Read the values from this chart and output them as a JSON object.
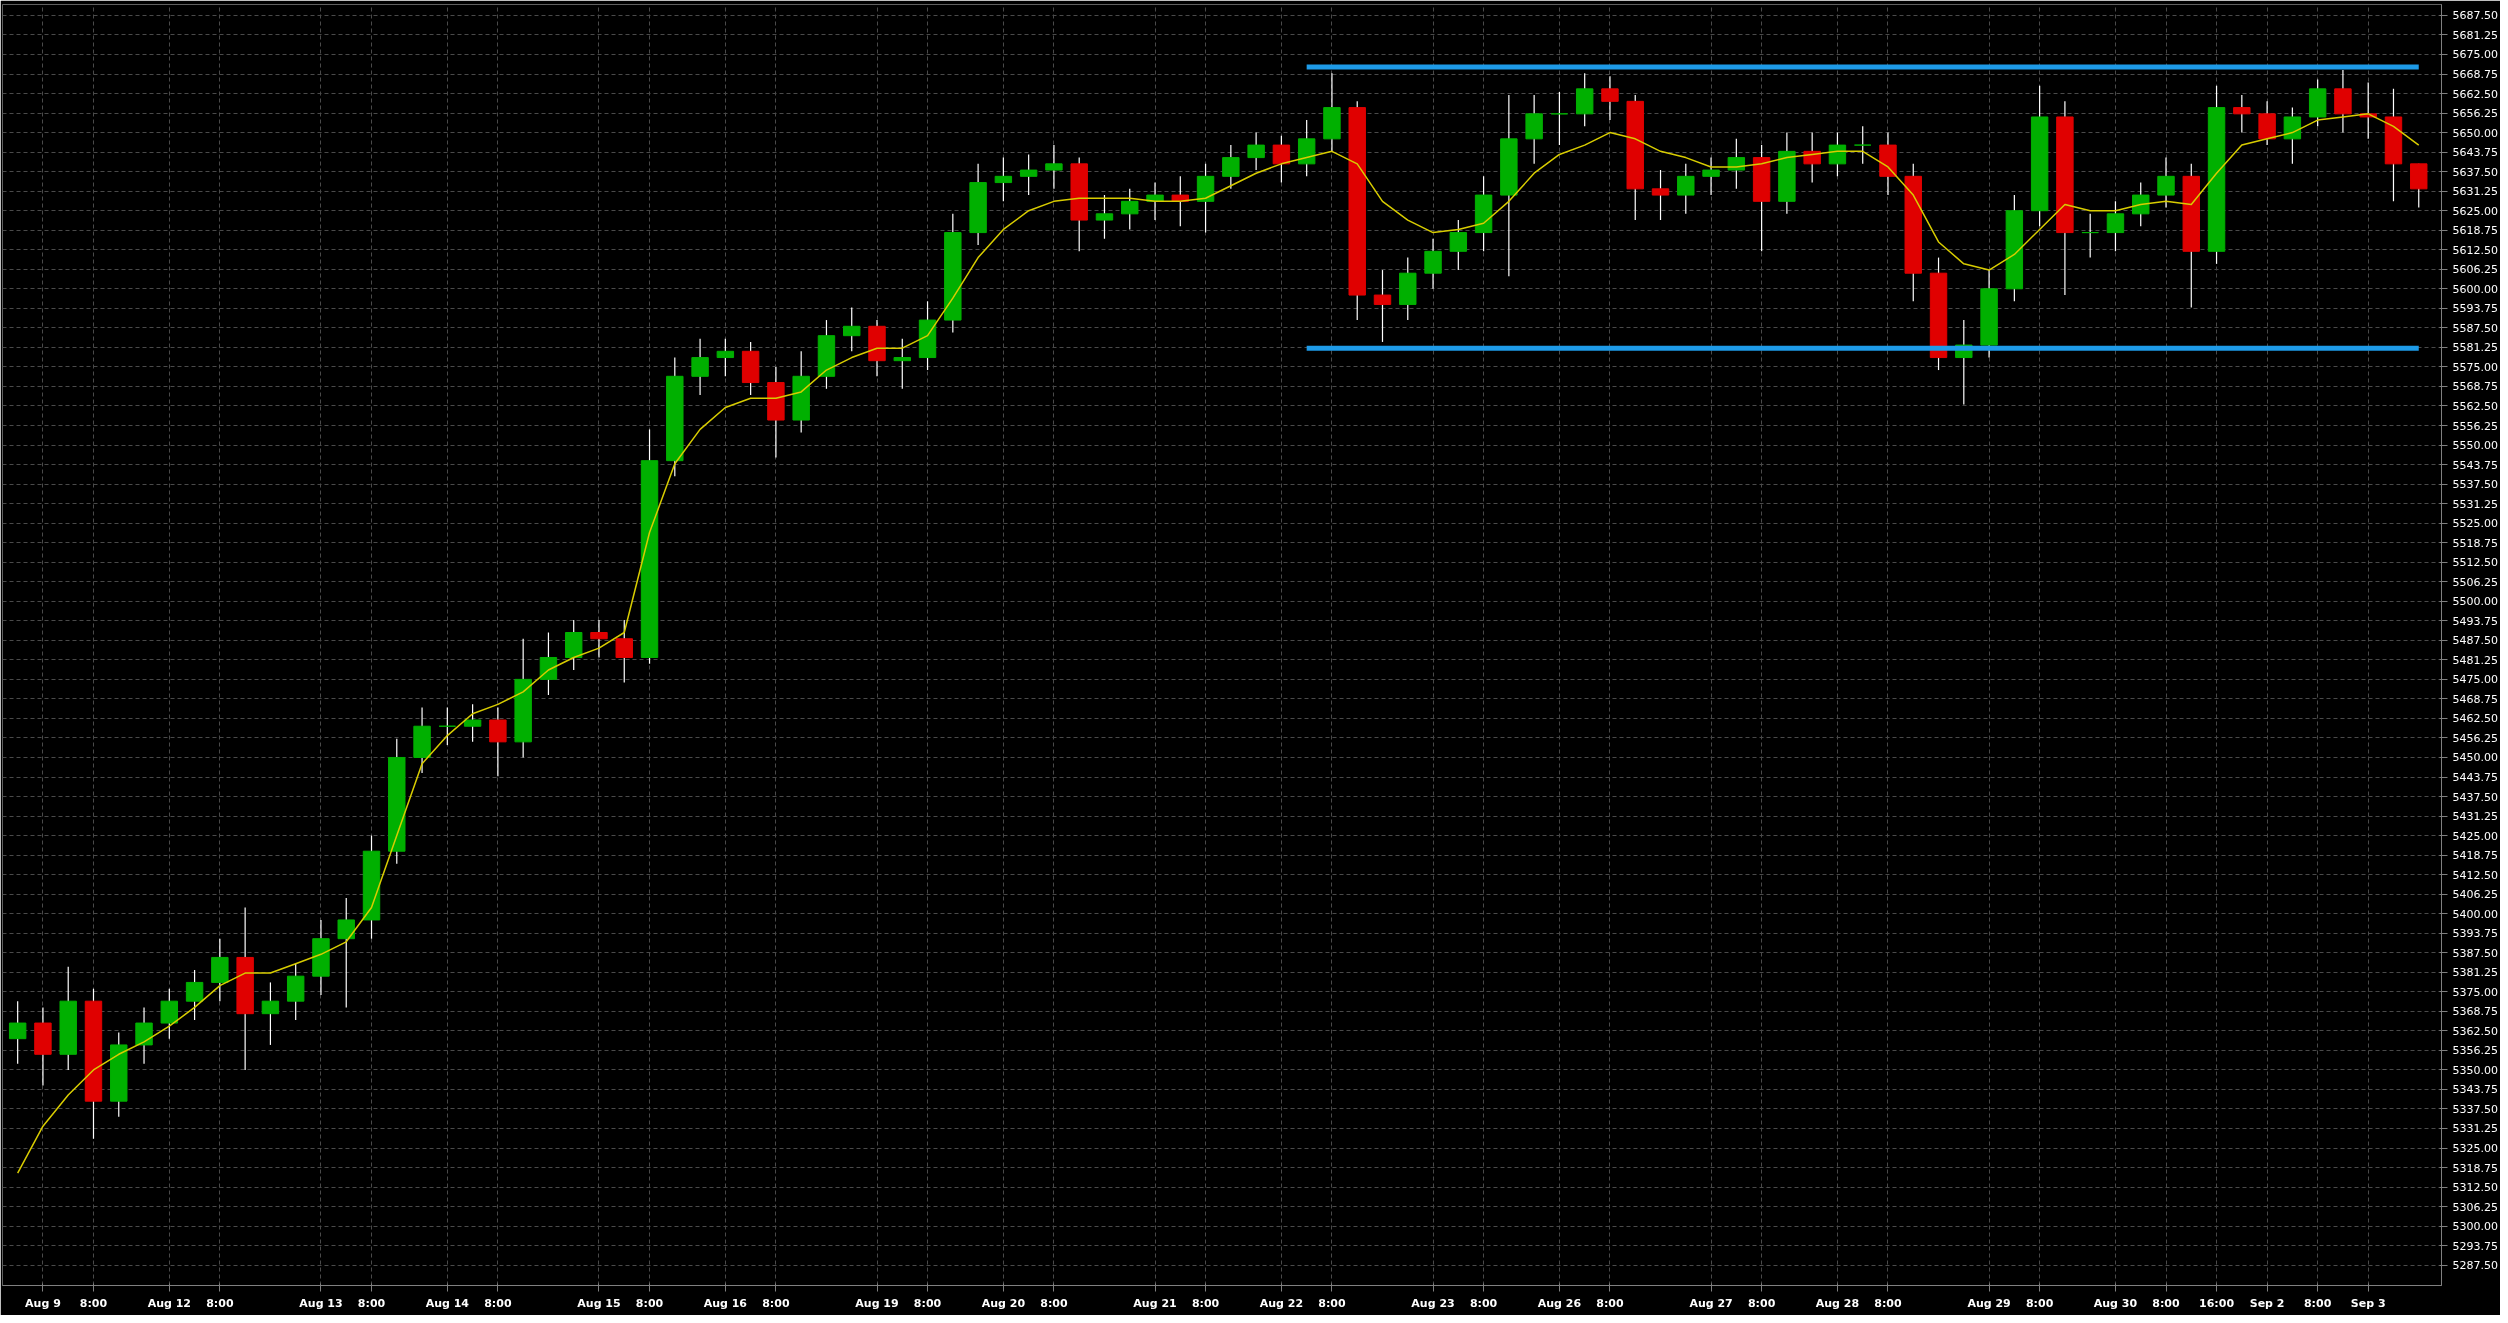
{
  "chart_data": {
    "type": "candlestick",
    "categories": [
      null,
      "Aug 9",
      null,
      "8:00",
      null,
      null,
      "Aug 12",
      null,
      "8:00",
      null,
      null,
      null,
      "Aug 13",
      null,
      "8:00",
      null,
      null,
      "Aug 14",
      null,
      "8:00",
      null,
      null,
      null,
      "Aug 15",
      null,
      "8:00",
      null,
      null,
      "Aug 16",
      null,
      "8:00",
      null,
      null,
      null,
      "Aug 19",
      null,
      "8:00",
      null,
      null,
      "Aug 20",
      null,
      "8:00",
      null,
      null,
      null,
      "Aug 21",
      null,
      "8:00",
      null,
      null,
      "Aug 22",
      null,
      "8:00",
      null,
      null,
      null,
      "Aug 23",
      null,
      "8:00",
      null,
      null,
      "Aug 26",
      null,
      "8:00",
      null,
      null,
      null,
      "Aug 27",
      null,
      "8:00",
      null,
      null,
      "Aug 28",
      null,
      "8:00",
      null,
      null,
      null,
      "Aug 29",
      null,
      "8:00",
      null,
      null,
      "Aug 30",
      null,
      "8:00",
      null,
      "16:00",
      null,
      "Sep 2",
      null,
      "8:00",
      null,
      "Sep 3",
      null,
      null
    ],
    "ohlc": [
      [
        5360,
        5372,
        5352,
        5365
      ],
      [
        5365,
        5370,
        5345,
        5355
      ],
      [
        5355,
        5383,
        5350,
        5372
      ],
      [
        5372,
        5376,
        5328,
        5340
      ],
      [
        5340,
        5362,
        5335,
        5358
      ],
      [
        5358,
        5370,
        5352,
        5365
      ],
      [
        5365,
        5376,
        5360,
        5372
      ],
      [
        5372,
        5382,
        5366,
        5378
      ],
      [
        5378,
        5392,
        5372,
        5386
      ],
      [
        5386,
        5402,
        5350,
        5368
      ],
      [
        5368,
        5378,
        5358,
        5372
      ],
      [
        5372,
        5384,
        5366,
        5380
      ],
      [
        5380,
        5398,
        5374,
        5392
      ],
      [
        5392,
        5405,
        5370,
        5398
      ],
      [
        5398,
        5425,
        5392,
        5420
      ],
      [
        5420,
        5456,
        5416,
        5450
      ],
      [
        5450,
        5466,
        5445,
        5460
      ],
      [
        5460,
        5466,
        5454,
        5460
      ],
      [
        5460,
        5467,
        5455,
        5462
      ],
      [
        5462,
        5466,
        5444,
        5455
      ],
      [
        5455,
        5488,
        5450,
        5475
      ],
      [
        5475,
        5490,
        5470,
        5482
      ],
      [
        5482,
        5494,
        5478,
        5490
      ],
      [
        5490,
        5494,
        5482,
        5488
      ],
      [
        5488,
        5494,
        5474,
        5482
      ],
      [
        5482,
        5555,
        5480,
        5545
      ],
      [
        5545,
        5578,
        5540,
        5572
      ],
      [
        5572,
        5584,
        5566,
        5578
      ],
      [
        5578,
        5584,
        5572,
        5580
      ],
      [
        5580,
        5583,
        5566,
        5570
      ],
      [
        5570,
        5575,
        5546,
        5558
      ],
      [
        5558,
        5580,
        5554,
        5572
      ],
      [
        5572,
        5590,
        5568,
        5585
      ],
      [
        5585,
        5594,
        5580,
        5588
      ],
      [
        5588,
        5590,
        5572,
        5577
      ],
      [
        5577,
        5584,
        5568,
        5578
      ],
      [
        5578,
        5596,
        5574,
        5590
      ],
      [
        5590,
        5624,
        5586,
        5618
      ],
      [
        5618,
        5640,
        5614,
        5634
      ],
      [
        5634,
        5642,
        5628,
        5636
      ],
      [
        5636,
        5643,
        5630,
        5638
      ],
      [
        5638,
        5646,
        5632,
        5640
      ],
      [
        5640,
        5642,
        5612,
        5622
      ],
      [
        5622,
        5630,
        5616,
        5624
      ],
      [
        5624,
        5632,
        5619,
        5628
      ],
      [
        5628,
        5634,
        5622,
        5630
      ],
      [
        5630,
        5636,
        5620,
        5628
      ],
      [
        5628,
        5640,
        5618,
        5636
      ],
      [
        5636,
        5646,
        5632,
        5642
      ],
      [
        5642,
        5650,
        5638,
        5646
      ],
      [
        5646,
        5649,
        5634,
        5640
      ],
      [
        5640,
        5654,
        5636,
        5648
      ],
      [
        5648,
        5669,
        5644,
        5658
      ],
      [
        5658,
        5660,
        5590,
        5598
      ],
      [
        5598,
        5606,
        5583,
        5595
      ],
      [
        5595,
        5610,
        5590,
        5605
      ],
      [
        5605,
        5616,
        5600,
        5612
      ],
      [
        5612,
        5622,
        5606,
        5618
      ],
      [
        5618,
        5636,
        5612,
        5630
      ],
      [
        5630,
        5662,
        5604,
        5648
      ],
      [
        5648,
        5662,
        5640,
        5656
      ],
      [
        5656,
        5663,
        5646,
        5656
      ],
      [
        5656,
        5669,
        5652,
        5664
      ],
      [
        5664,
        5668,
        5654,
        5660
      ],
      [
        5660,
        5662,
        5622,
        5632
      ],
      [
        5632,
        5638,
        5622,
        5630
      ],
      [
        5630,
        5640,
        5624,
        5636
      ],
      [
        5636,
        5642,
        5630,
        5638
      ],
      [
        5638,
        5648,
        5632,
        5642
      ],
      [
        5642,
        5646,
        5612,
        5628
      ],
      [
        5628,
        5650,
        5624,
        5644
      ],
      [
        5644,
        5650,
        5634,
        5640
      ],
      [
        5640,
        5650,
        5636,
        5646
      ],
      [
        5646,
        5652,
        5640,
        5646
      ],
      [
        5646,
        5650,
        5630,
        5636
      ],
      [
        5636,
        5640,
        5596,
        5605
      ],
      [
        5605,
        5610,
        5574,
        5578
      ],
      [
        5578,
        5590,
        5563,
        5582
      ],
      [
        5582,
        5606,
        5578,
        5600
      ],
      [
        5600,
        5630,
        5596,
        5625
      ],
      [
        5625,
        5665,
        5620,
        5655
      ],
      [
        5655,
        5660,
        5598,
        5618
      ],
      [
        5618,
        5624,
        5610,
        5618
      ],
      [
        5618,
        5628,
        5612,
        5624
      ],
      [
        5624,
        5634,
        5620,
        5630
      ],
      [
        5630,
        5642,
        5626,
        5636
      ],
      [
        5636,
        5640,
        5594,
        5612
      ],
      [
        5612,
        5665,
        5608,
        5658
      ],
      [
        5658,
        5662,
        5650,
        5656
      ],
      [
        5656,
        5660,
        5646,
        5648
      ],
      [
        5648,
        5658,
        5640,
        5655
      ],
      [
        5655,
        5667,
        5652,
        5664
      ],
      [
        5664,
        5670,
        5650,
        5656
      ],
      [
        5656,
        5666,
        5648,
        5655
      ],
      [
        5655,
        5664,
        5628,
        5640
      ],
      [
        5640,
        5640,
        5626,
        5632
      ]
    ],
    "series": [
      {
        "type": "line",
        "color": "#d8cc00",
        "values": [
          5317,
          5332,
          5342,
          5350,
          5355,
          5359,
          5364,
          5370,
          5377,
          5381,
          5381,
          5384,
          5387,
          5391,
          5402,
          5425,
          5448,
          5457,
          5464,
          5467,
          5471,
          5478,
          5482,
          5485,
          5490,
          5522,
          5544,
          5555,
          5562,
          5565,
          5565,
          5567,
          5574,
          5578,
          5581,
          5581,
          5585,
          5597,
          5610,
          5619,
          5625,
          5628,
          5629,
          5629,
          5629,
          5628,
          5628,
          5629,
          5633,
          5637,
          5640,
          5642,
          5644,
          5640,
          5628,
          5622,
          5618,
          5619,
          5621,
          5628,
          5637,
          5643,
          5646,
          5650,
          5648,
          5644,
          5642,
          5639,
          5639,
          5640,
          5642,
          5643,
          5644,
          5644,
          5639,
          5630,
          5615,
          5608,
          5606,
          5611,
          5619,
          5627,
          5625,
          5625,
          5627,
          5628,
          5627,
          5637,
          5646,
          5648,
          5650,
          5654,
          5655,
          5656,
          5652,
          5646
        ]
      },
      {
        "type": "line",
        "color": "#1e9be8",
        "values": [
          null,
          null,
          null,
          null,
          null,
          null,
          null,
          null,
          null,
          null,
          null,
          null,
          null,
          null,
          null,
          null,
          null,
          null,
          null,
          null,
          null,
          null,
          null,
          null,
          null,
          null,
          null,
          null,
          null,
          null,
          null,
          null,
          null,
          null,
          null,
          null,
          null,
          null,
          null,
          null,
          null,
          null,
          null,
          null,
          null,
          null,
          null,
          null,
          null,
          null,
          null,
          5671,
          5671,
          5671,
          5671,
          5671,
          5671,
          5671,
          5671,
          5671,
          5671,
          5671,
          5671,
          5671,
          5671,
          5671,
          5671,
          5671,
          5671,
          5671,
          5671,
          5671,
          5671,
          5671,
          5671,
          5671,
          5671,
          5671,
          5671,
          5671,
          5671,
          5671,
          5671,
          5671,
          5671,
          5671,
          5671,
          5671,
          5671,
          5671,
          5671,
          5671,
          5671,
          5671,
          5671,
          5671
        ]
      },
      {
        "type": "line",
        "color": "#1e9be8",
        "values": [
          null,
          null,
          null,
          null,
          null,
          null,
          null,
          null,
          null,
          null,
          null,
          null,
          null,
          null,
          null,
          null,
          null,
          null,
          null,
          null,
          null,
          null,
          null,
          null,
          null,
          null,
          null,
          null,
          null,
          null,
          null,
          null,
          null,
          null,
          null,
          null,
          null,
          null,
          null,
          null,
          null,
          null,
          null,
          null,
          null,
          null,
          null,
          null,
          null,
          null,
          null,
          5581,
          5581,
          5581,
          5581,
          5581,
          5581,
          5581,
          5581,
          5581,
          5581,
          5581,
          5581,
          5581,
          5581,
          5581,
          5581,
          5581,
          5581,
          5581,
          5581,
          5581,
          5581,
          5581,
          5581,
          5581,
          5581,
          5581,
          5581,
          5581,
          5581,
          5581,
          5581,
          5581,
          5581,
          5581,
          5581,
          5581,
          5581,
          5581,
          5581,
          5581,
          5581,
          5581,
          5581,
          5581
        ]
      }
    ],
    "ylim": [
      5281,
      5691
    ],
    "yticks": [
      {
        "value": 5287.5,
        "label": "5287.50"
      },
      {
        "value": 5293.75,
        "label": "5293.75"
      },
      {
        "value": 5300,
        "label": "5300.00"
      },
      {
        "value": 5306.25,
        "label": "5306.25"
      },
      {
        "value": 5312.5,
        "label": "5312.50"
      },
      {
        "value": 5318.75,
        "label": "5318.75"
      },
      {
        "value": 5325,
        "label": "5325.00"
      },
      {
        "value": 5331.25,
        "label": "5331.25"
      },
      {
        "value": 5337.5,
        "label": "5337.50"
      },
      {
        "value": 5343.75,
        "label": "5343.75"
      },
      {
        "value": 5350,
        "label": "5350.00"
      },
      {
        "value": 5356.25,
        "label": "5356.25"
      },
      {
        "value": 5362.5,
        "label": "5362.50"
      },
      {
        "value": 5368.75,
        "label": "5368.75"
      },
      {
        "value": 5375,
        "label": "5375.00"
      },
      {
        "value": 5381.25,
        "label": "5381.25"
      },
      {
        "value": 5387.5,
        "label": "5387.50"
      },
      {
        "value": 5393.75,
        "label": "5393.75"
      },
      {
        "value": 5400,
        "label": "5400.00"
      },
      {
        "value": 5406.25,
        "label": "5406.25"
      },
      {
        "value": 5412.5,
        "label": "5412.50"
      },
      {
        "value": 5418.75,
        "label": "5418.75"
      },
      {
        "value": 5425,
        "label": "5425.00"
      },
      {
        "value": 5431.25,
        "label": "5431.25"
      },
      {
        "value": 5437.5,
        "label": "5437.50"
      },
      {
        "value": 5443.75,
        "label": "5443.75"
      },
      {
        "value": 5450,
        "label": "5450.00"
      },
      {
        "value": 5456.25,
        "label": "5456.25"
      },
      {
        "value": 5462.5,
        "label": "5462.50"
      },
      {
        "value": 5468.75,
        "label": "5468.75"
      },
      {
        "value": 5475,
        "label": "5475.00"
      },
      {
        "value": 5481.25,
        "label": "5481.25"
      },
      {
        "value": 5487.5,
        "label": "5487.50"
      },
      {
        "value": 5493.75,
        "label": "5493.75"
      },
      {
        "value": 5500,
        "label": "5500.00"
      },
      {
        "value": 5506.25,
        "label": "5506.25"
      },
      {
        "value": 5512.5,
        "label": "5512.50"
      },
      {
        "value": 5518.75,
        "label": "5518.75"
      },
      {
        "value": 5525,
        "label": "5525.00"
      },
      {
        "value": 5531.25,
        "label": "5531.25"
      },
      {
        "value": 5537.5,
        "label": "5537.50"
      },
      {
        "value": 5543.75,
        "label": "5543.75"
      },
      {
        "value": 5550,
        "label": "5550.00"
      },
      {
        "value": 5556.25,
        "label": "5556.25"
      },
      {
        "value": 5562.5,
        "label": "5562.50"
      },
      {
        "value": 5568.75,
        "label": "5568.75"
      },
      {
        "value": 5575,
        "label": "5575.00"
      },
      {
        "value": 5581.25,
        "label": "5581.25"
      },
      {
        "value": 5587.5,
        "label": "5587.50"
      },
      {
        "value": 5593.75,
        "label": "5593.75"
      },
      {
        "value": 5600,
        "label": "5600.00"
      },
      {
        "value": 5606.25,
        "label": "5606.25"
      },
      {
        "value": 5612.5,
        "label": "5612.50"
      },
      {
        "value": 5618.75,
        "label": "5618.75"
      },
      {
        "value": 5625,
        "label": "5625.00"
      },
      {
        "value": 5631.25,
        "label": "5631.25"
      },
      {
        "value": 5637.5,
        "label": "5637.50"
      },
      {
        "value": 5643.75,
        "label": "5643.75"
      },
      {
        "value": 5650,
        "label": "5650.00"
      },
      {
        "value": 5656.25,
        "label": "5656.25"
      },
      {
        "value": 5662.5,
        "label": "5662.50"
      },
      {
        "value": 5668.75,
        "label": "5668.75"
      },
      {
        "value": 5675,
        "label": "5675.00"
      },
      {
        "value": 5681.25,
        "label": "5681.25"
      },
      {
        "value": 5687.5,
        "label": "5687.50"
      }
    ],
    "grid": true
  }
}
